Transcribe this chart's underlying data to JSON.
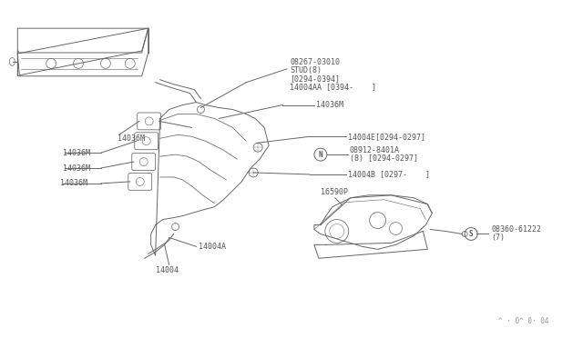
{
  "background_color": "#ffffff",
  "fig_width": 6.4,
  "fig_height": 3.72,
  "dpi": 100,
  "labels": {
    "part1": "08267-03010",
    "part1b": "STUD(8)",
    "part1c": "[0294-0394]",
    "part1d": "14004AA [0394-    ]",
    "part2": "14036M",
    "part3": "14004E[0294-0297]",
    "part4_circle": "N",
    "part4": "08912-8401A",
    "part4b": "(8) [0294-0297]",
    "part5": "14004B [0297-    ]",
    "part6_1": "14036M",
    "part6_2": "14036M",
    "part6_3": "14036M",
    "part6_4": "14036M",
    "part9": "14004A",
    "part10": "14004",
    "part11": "16590P",
    "part12_circle": "S",
    "part12": "08360-61222",
    "part12b": "(7)",
    "watermark": "^ · 0^ 0· 04"
  },
  "colors": {
    "line": "#666666",
    "text": "#555555",
    "background": "#ffffff"
  }
}
